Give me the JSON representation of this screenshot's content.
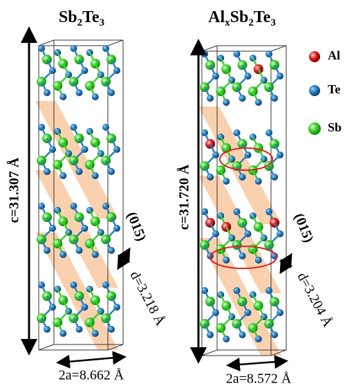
{
  "left": {
    "title": [
      "Sb",
      "2",
      "Te",
      "3"
    ],
    "c": "c=31.307 Å",
    "a": "2a=8.662 Å",
    "d": "d=3.218 Å",
    "plane": "(015)"
  },
  "right": {
    "title": [
      "Al",
      "x",
      "Sb",
      "2",
      "Te",
      "3"
    ],
    "c": "c=31.720 Å",
    "a": "2a=8.572 Å",
    "d": "d=3.204 Å",
    "plane": "(015)"
  },
  "legend": [
    "Al",
    "Te",
    "Sb"
  ]
}
